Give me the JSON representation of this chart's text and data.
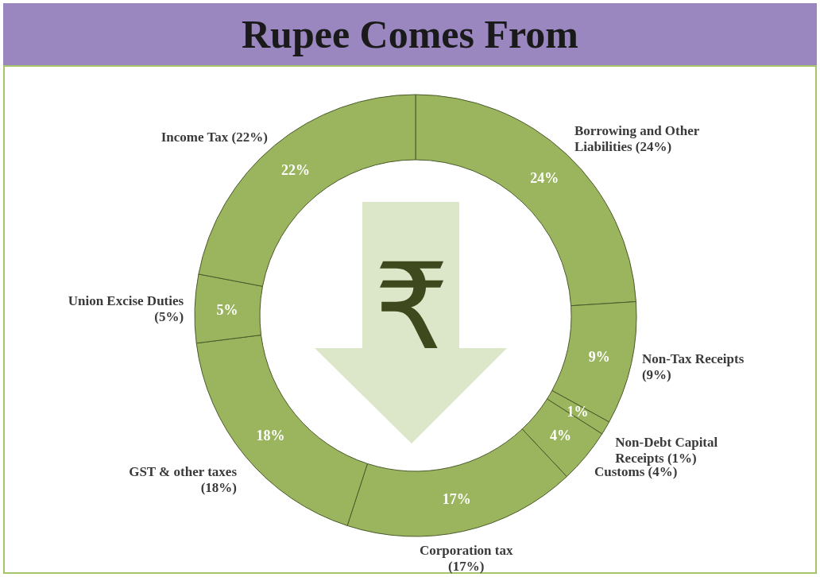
{
  "chart_data": {
    "type": "donut",
    "title": "Rupee Comes From",
    "categories": [
      "Borrowing and Other Liabilities (24%)",
      "Non-Tax Receipts (9%)",
      "Non-Debt Capital Receipts (1%)",
      "Customs (4%)",
      "Corporation tax (17%)",
      "GST & other taxes (18%)",
      "Union Excise Duties (5%)",
      "Income Tax (22%)"
    ],
    "values": [
      24,
      9,
      1,
      4,
      17,
      18,
      5,
      22
    ],
    "colors": [
      "#9bb55f",
      "#9bb55f",
      "#9bb55f",
      "#9bb55f",
      "#9bb55f",
      "#9bb55f",
      "#9bb55f",
      "#9bb55f"
    ],
    "value_labels": [
      "24%",
      "9%",
      "1%",
      "4%",
      "17%",
      "18%",
      "5%",
      "22%"
    ],
    "annotations": [
      "₹"
    ]
  }
}
